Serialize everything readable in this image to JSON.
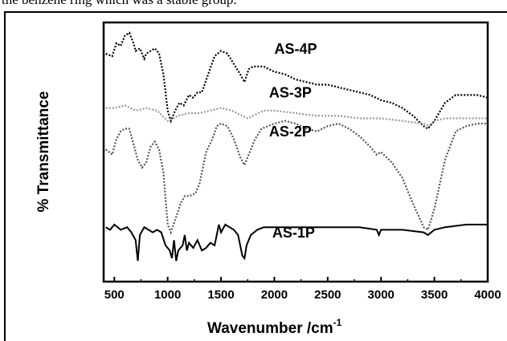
{
  "header": {
    "caption_fragment": "the benzene ring which was a stable group."
  },
  "chart_data": {
    "type": "line",
    "title": "",
    "xlabel": "Wavenumber /cm",
    "xlabel_sup": "-1",
    "ylabel": "% Transmittance",
    "xlim": [
      400,
      4000
    ],
    "ylim": [
      0,
      100
    ],
    "x_ticks": [
      "500",
      "1000",
      "1500",
      "2000",
      "2500",
      "3000",
      "3500",
      "4000"
    ],
    "grid": false,
    "legend": "inline labels",
    "series": [
      {
        "name": "AS-4P",
        "color": "#000000",
        "style": "dotted",
        "points": [
          [
            420,
            88
          ],
          [
            480,
            87
          ],
          [
            520,
            92
          ],
          [
            560,
            91
          ],
          [
            600,
            95
          ],
          [
            640,
            96
          ],
          [
            680,
            92
          ],
          [
            700,
            89
          ],
          [
            740,
            90
          ],
          [
            780,
            86
          ],
          [
            800,
            88
          ],
          [
            840,
            89
          ],
          [
            880,
            90
          ],
          [
            920,
            88
          ],
          [
            960,
            80
          ],
          [
            1000,
            66
          ],
          [
            1030,
            62
          ],
          [
            1070,
            66
          ],
          [
            1110,
            69
          ],
          [
            1150,
            68
          ],
          [
            1200,
            72
          ],
          [
            1240,
            71
          ],
          [
            1280,
            73
          ],
          [
            1320,
            73
          ],
          [
            1380,
            80
          ],
          [
            1440,
            87
          ],
          [
            1500,
            89
          ],
          [
            1560,
            88
          ],
          [
            1620,
            84
          ],
          [
            1680,
            80
          ],
          [
            1720,
            77
          ],
          [
            1760,
            82
          ],
          [
            1800,
            83
          ],
          [
            1900,
            83
          ],
          [
            2000,
            81
          ],
          [
            2100,
            80
          ],
          [
            2200,
            78
          ],
          [
            2300,
            77
          ],
          [
            2400,
            76
          ],
          [
            2500,
            76
          ],
          [
            2600,
            75
          ],
          [
            2700,
            74
          ],
          [
            2800,
            73
          ],
          [
            2900,
            72
          ],
          [
            3000,
            70
          ],
          [
            3100,
            69
          ],
          [
            3200,
            67
          ],
          [
            3300,
            64
          ],
          [
            3400,
            60
          ],
          [
            3440,
            59
          ],
          [
            3500,
            62
          ],
          [
            3600,
            69
          ],
          [
            3700,
            72
          ],
          [
            3800,
            72
          ],
          [
            3900,
            72
          ],
          [
            4000,
            71
          ]
        ]
      },
      {
        "name": "AS-3P",
        "color": "#999999",
        "style": "dotted",
        "points": [
          [
            420,
            67
          ],
          [
            500,
            67
          ],
          [
            600,
            68
          ],
          [
            700,
            66
          ],
          [
            800,
            67
          ],
          [
            900,
            66
          ],
          [
            1000,
            62
          ],
          [
            1050,
            63
          ],
          [
            1100,
            64
          ],
          [
            1200,
            65
          ],
          [
            1300,
            65
          ],
          [
            1400,
            66
          ],
          [
            1500,
            67
          ],
          [
            1600,
            66
          ],
          [
            1700,
            64
          ],
          [
            1750,
            63
          ],
          [
            1800,
            64
          ],
          [
            1900,
            66
          ],
          [
            2000,
            66
          ],
          [
            2200,
            65
          ],
          [
            2400,
            64
          ],
          [
            2600,
            64
          ],
          [
            2800,
            63
          ],
          [
            3000,
            63
          ],
          [
            3200,
            62
          ],
          [
            3400,
            61
          ],
          [
            3450,
            60
          ],
          [
            3500,
            62
          ],
          [
            3600,
            63
          ],
          [
            3800,
            63
          ],
          [
            4000,
            63
          ]
        ]
      },
      {
        "name": "AS-2P",
        "color": "#555555",
        "style": "dotted",
        "points": [
          [
            420,
            51
          ],
          [
            480,
            49
          ],
          [
            520,
            55
          ],
          [
            560,
            58
          ],
          [
            600,
            59
          ],
          [
            640,
            59
          ],
          [
            680,
            53
          ],
          [
            720,
            47
          ],
          [
            760,
            44
          ],
          [
            800,
            46
          ],
          [
            840,
            52
          ],
          [
            880,
            54
          ],
          [
            920,
            51
          ],
          [
            960,
            42
          ],
          [
            1000,
            22
          ],
          [
            1030,
            19
          ],
          [
            1080,
            25
          ],
          [
            1120,
            30
          ],
          [
            1160,
            33
          ],
          [
            1200,
            33
          ],
          [
            1260,
            34
          ],
          [
            1300,
            38
          ],
          [
            1360,
            50
          ],
          [
            1420,
            55
          ],
          [
            1460,
            60
          ],
          [
            1500,
            61
          ],
          [
            1560,
            60
          ],
          [
            1620,
            55
          ],
          [
            1680,
            48
          ],
          [
            1720,
            45
          ],
          [
            1780,
            51
          ],
          [
            1820,
            55
          ],
          [
            1880,
            59
          ],
          [
            1940,
            60
          ],
          [
            2000,
            61
          ],
          [
            2100,
            62
          ],
          [
            2200,
            61
          ],
          [
            2300,
            59
          ],
          [
            2400,
            58
          ],
          [
            2500,
            60
          ],
          [
            2600,
            61
          ],
          [
            2700,
            59
          ],
          [
            2800,
            56
          ],
          [
            2900,
            52
          ],
          [
            2960,
            49
          ],
          [
            3000,
            50
          ],
          [
            3100,
            46
          ],
          [
            3200,
            40
          ],
          [
            3300,
            30
          ],
          [
            3400,
            21
          ],
          [
            3440,
            20
          ],
          [
            3500,
            28
          ],
          [
            3600,
            47
          ],
          [
            3700,
            58
          ],
          [
            3800,
            60
          ],
          [
            3900,
            61
          ],
          [
            4000,
            61
          ]
        ]
      },
      {
        "name": "AS-1P",
        "color": "#000000",
        "style": "solid",
        "points": [
          [
            420,
            21
          ],
          [
            460,
            20
          ],
          [
            500,
            22
          ],
          [
            560,
            20
          ],
          [
            620,
            21
          ],
          [
            660,
            19
          ],
          [
            700,
            16
          ],
          [
            720,
            8
          ],
          [
            740,
            18
          ],
          [
            780,
            21
          ],
          [
            820,
            20
          ],
          [
            860,
            19
          ],
          [
            900,
            20
          ],
          [
            940,
            19
          ],
          [
            980,
            14
          ],
          [
            1020,
            12
          ],
          [
            1040,
            9
          ],
          [
            1060,
            16
          ],
          [
            1080,
            8
          ],
          [
            1100,
            12
          ],
          [
            1140,
            14
          ],
          [
            1160,
            18
          ],
          [
            1180,
            12
          ],
          [
            1200,
            15
          ],
          [
            1240,
            13
          ],
          [
            1280,
            16
          ],
          [
            1320,
            12
          ],
          [
            1360,
            13
          ],
          [
            1400,
            15
          ],
          [
            1440,
            14
          ],
          [
            1480,
            22
          ],
          [
            1500,
            19
          ],
          [
            1540,
            22
          ],
          [
            1580,
            21
          ],
          [
            1620,
            20
          ],
          [
            1660,
            18
          ],
          [
            1700,
            10
          ],
          [
            1720,
            9
          ],
          [
            1740,
            14
          ],
          [
            1780,
            18
          ],
          [
            1840,
            20
          ],
          [
            1900,
            21
          ],
          [
            2000,
            21
          ],
          [
            2200,
            21
          ],
          [
            2400,
            21
          ],
          [
            2600,
            21
          ],
          [
            2800,
            21
          ],
          [
            2960,
            20
          ],
          [
            2980,
            18
          ],
          [
            3000,
            20
          ],
          [
            3200,
            20
          ],
          [
            3400,
            19
          ],
          [
            3440,
            18
          ],
          [
            3500,
            20
          ],
          [
            3600,
            21
          ],
          [
            3800,
            22
          ],
          [
            4000,
            22
          ]
        ]
      }
    ]
  }
}
